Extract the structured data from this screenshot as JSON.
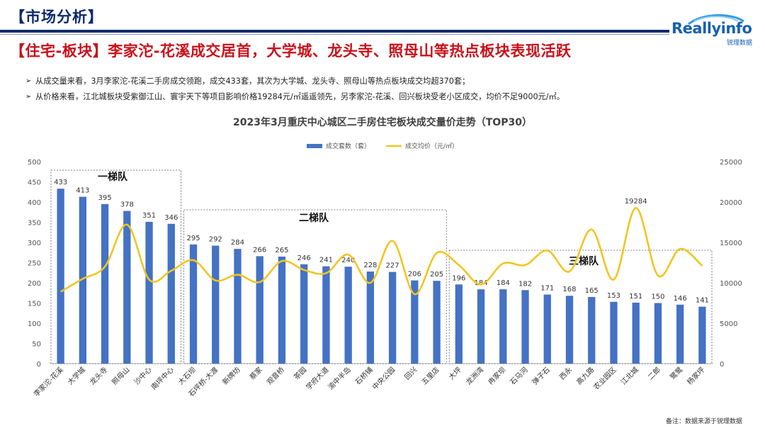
{
  "header": {
    "title": "【市场分析】"
  },
  "logo": {
    "name": "Reallyinfo",
    "sub": "锐理数据"
  },
  "headline": "【住宅-板块】李家沱-花溪成交居首，大学城、龙头寺、照母山等热点板块表现活跃",
  "bullets": [
    {
      "icon": "arrow-bullet-icon",
      "text": "从成交量来看，3月李家沱-花溪二手房成交领跑，成交433套，其次为大学城、龙头寺、照母山等热点板块成交均超370套；"
    },
    {
      "icon": "arrow-bullet-icon",
      "text": "从价格来看，江北城板块受紫御江山、寰宇天下等项目影响价格19284元/㎡遥遥领先，另李家沱-花溪、回兴板块受老小区成交，均价不足9000元/㎡。"
    }
  ],
  "footnote": "备注：数据来源于锐理数据",
  "colors": {
    "bar": "#4472c4",
    "line": "#f2c521",
    "title": "#0d2a6b",
    "headline": "#c9111a"
  },
  "chart_data": {
    "type": "bar",
    "title": "2023年3月重庆中心城区二手房住宅板块成交量价走势（TOP30）",
    "categories": [
      "李家沱-花溪",
      "大学城",
      "龙头寺",
      "照母山",
      "沙中心",
      "南坪中心",
      "大石坝",
      "石坪桥-大渡",
      "新牌坊",
      "蔡家",
      "观音桥",
      "茶园",
      "学府大道",
      "渝中半岛",
      "石桥铺",
      "中央公园",
      "回兴",
      "五里店",
      "大坪",
      "龙洲湾",
      "冉家坝",
      "石马河",
      "弹子石",
      "西永",
      "高九路",
      "农业园区",
      "江北城",
      "二郎",
      "鹭鹭",
      "杨家坪"
    ],
    "series": [
      {
        "name": "成交套数（套）",
        "type": "bar",
        "axis": "left",
        "values": [
          433,
          413,
          395,
          378,
          351,
          346,
          295,
          292,
          284,
          266,
          265,
          246,
          241,
          240,
          228,
          227,
          206,
          205,
          196,
          184,
          184,
          182,
          171,
          168,
          165,
          153,
          151,
          150,
          146,
          141
        ]
      },
      {
        "name": "成交均价（元/㎡）",
        "type": "line",
        "axis": "right",
        "values": [
          8900,
          10500,
          12000,
          17200,
          10400,
          11500,
          12800,
          10300,
          11000,
          10100,
          12700,
          11600,
          11200,
          13500,
          10000,
          15200,
          8600,
          13700,
          12200,
          9800,
          12400,
          12200,
          14000,
          11400,
          16600,
          10400,
          19284,
          10900,
          14200,
          12100
        ]
      }
    ],
    "yleft": {
      "min": 0,
      "max": 500,
      "ticks": [
        "0",
        "50",
        "100",
        "150",
        "200",
        "250",
        "300",
        "350",
        "400",
        "450",
        "500"
      ]
    },
    "yright": {
      "min": 0,
      "max": 25000,
      "ticks": [
        "0",
        "5000",
        "10000",
        "15000",
        "20000",
        "25000"
      ]
    },
    "legend_position": "top",
    "grid": false,
    "groups": [
      {
        "label": "一梯队",
        "from": 0,
        "to": 5
      },
      {
        "label": "二梯队",
        "from": 6,
        "to": 17
      },
      {
        "label": "三梯队",
        "from": 18,
        "to": 29
      }
    ],
    "annotations": [
      {
        "category": "江北城",
        "series": "成交均价（元/㎡）",
        "text": "19284"
      }
    ]
  }
}
